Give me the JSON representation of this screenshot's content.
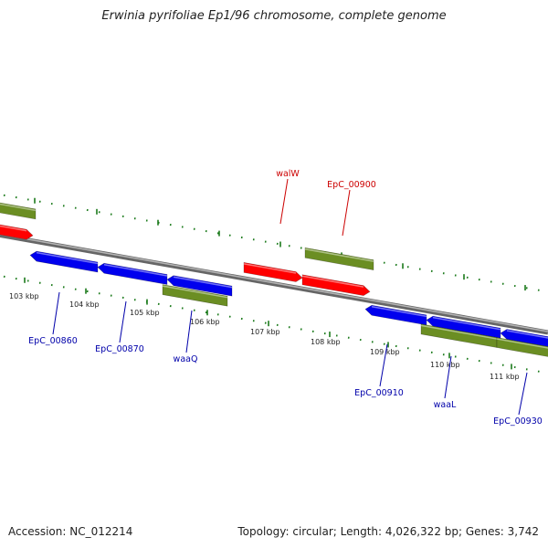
{
  "title": "Erwinia pyrifoliae Ep1/96 chromosome, complete genome",
  "footer": {
    "accession": "Accession: NC_012214",
    "summary": "Topology: circular; Length: 4,026,322 bp; Genes: 3,742"
  },
  "colors": {
    "backbone": "#8a8a8a",
    "forward_gene": "#ff0000",
    "reverse_gene": "#0000ee",
    "rna_gene": "#6b8e23",
    "tick": "#1a7a1a",
    "label_forward": "#cc0000",
    "label_reverse": "#0000aa"
  },
  "map": {
    "kbp_labels": [
      "103 kbp",
      "104 kbp",
      "105 kbp",
      "106 kbp",
      "107 kbp",
      "108 kbp",
      "109 kbp",
      "110 kbp",
      "111 kbp"
    ],
    "genes": [
      {
        "type": "forward"
      },
      {
        "type": "forward"
      },
      {
        "type": "forward"
      },
      {
        "type": "reverse"
      },
      {
        "type": "reverse"
      },
      {
        "type": "reverse"
      },
      {
        "type": "reverse"
      },
      {
        "type": "reverse"
      },
      {
        "type": "reverse"
      },
      {
        "type": "rna"
      },
      {
        "type": "rna"
      },
      {
        "type": "rna"
      },
      {
        "type": "rna"
      },
      {
        "type": "rna"
      }
    ],
    "gene_labels": [
      {
        "text": "walW",
        "strand": "forward"
      },
      {
        "text": "EpC_00900",
        "strand": "forward"
      },
      {
        "text": "EpC_00860",
        "strand": "reverse"
      },
      {
        "text": "EpC_00870",
        "strand": "reverse"
      },
      {
        "text": "waaQ",
        "strand": "reverse"
      },
      {
        "text": "EpC_00910",
        "strand": "reverse"
      },
      {
        "text": "waaL",
        "strand": "reverse"
      },
      {
        "text": "EpC_00930",
        "strand": "reverse"
      }
    ]
  }
}
